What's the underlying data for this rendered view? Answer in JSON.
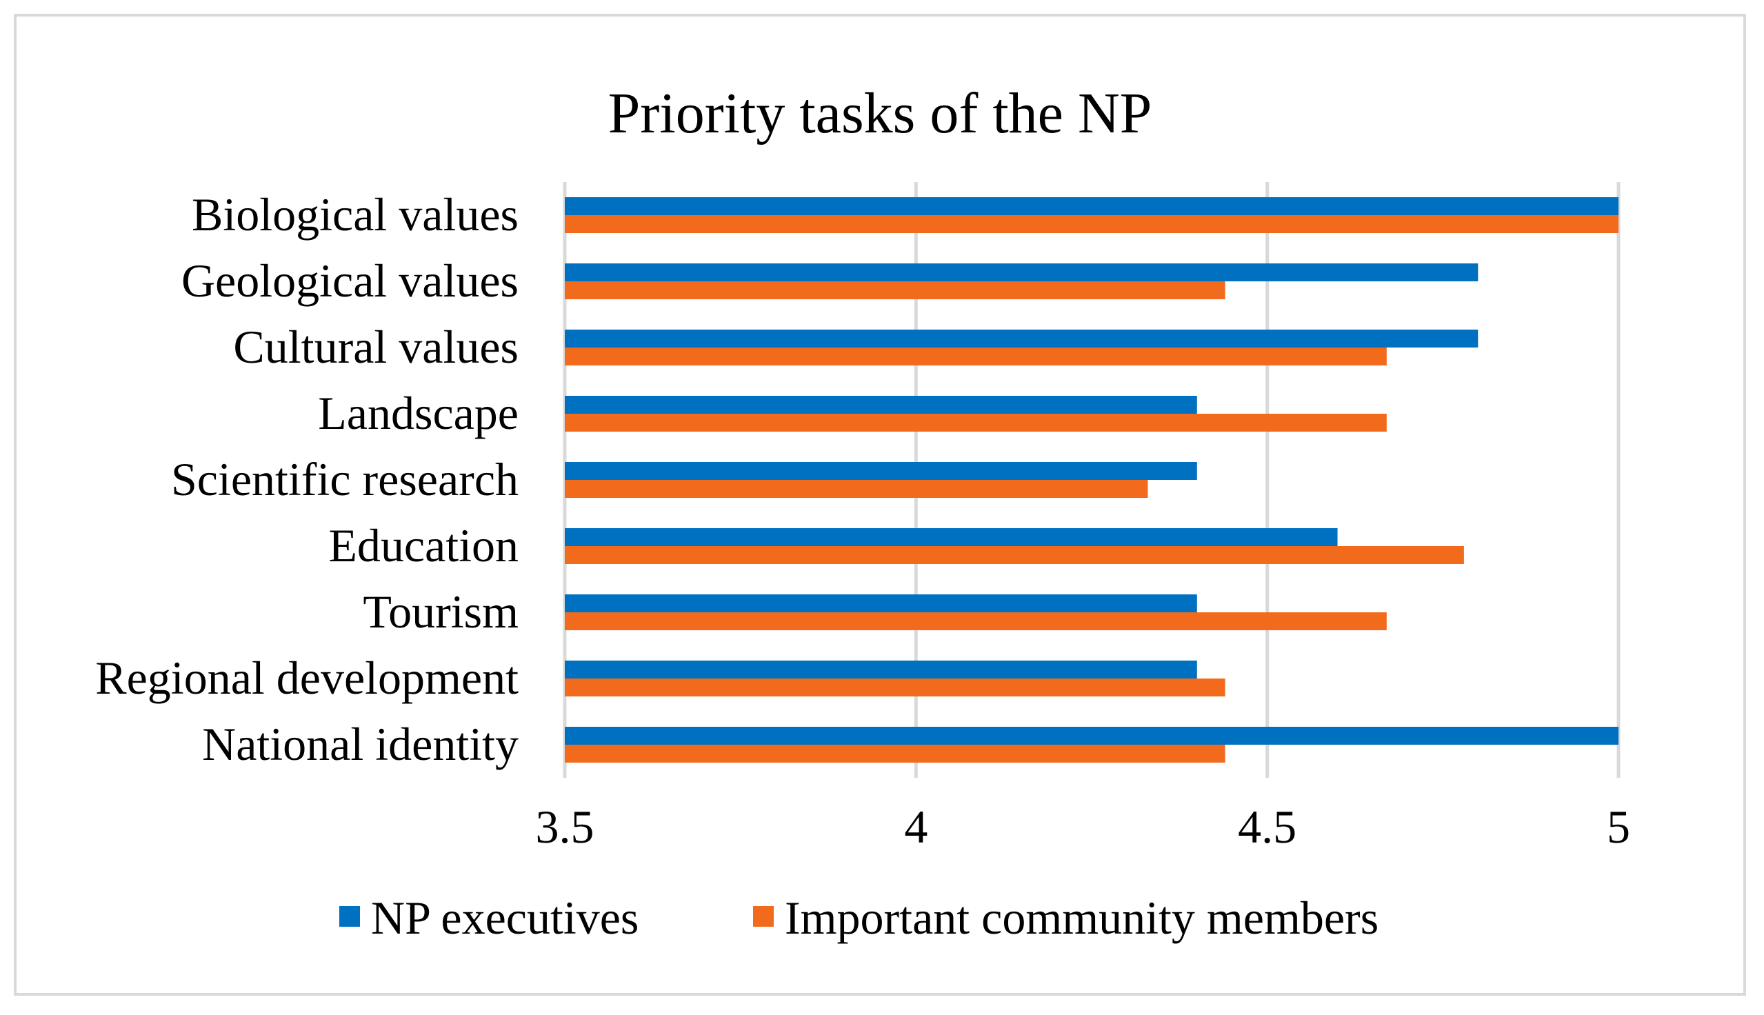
{
  "chart_data": {
    "type": "bar",
    "orientation": "horizontal",
    "title": "Priority tasks of the NP",
    "xlabel": "",
    "ylabel": "",
    "categories": [
      "Biological values",
      "Geological values",
      "Cultural values",
      "Landscape",
      "Scientific research",
      "Education",
      "Tourism",
      "Regional development",
      "National identity"
    ],
    "series": [
      {
        "name": "NP executives",
        "color": "#0070c0",
        "values": [
          5.0,
          4.8,
          4.8,
          4.4,
          4.4,
          4.6,
          4.4,
          4.4,
          5.0
        ]
      },
      {
        "name": "Important community members",
        "color": "#f26b1d",
        "values": [
          5.0,
          4.44,
          4.67,
          4.67,
          4.33,
          4.78,
          4.67,
          4.44,
          4.44
        ]
      }
    ],
    "xlim": [
      3.5,
      5
    ],
    "ticks": [
      "3.5",
      "4",
      "4.5",
      "5"
    ],
    "grid": true,
    "legend_position": "bottom"
  }
}
